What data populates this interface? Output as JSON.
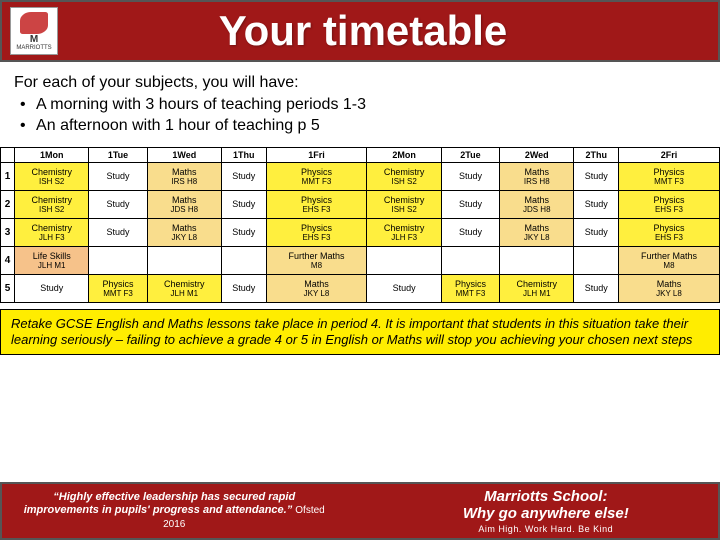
{
  "header": {
    "title": "Your timetable",
    "logo_letter": "M",
    "logo_name": "MARRIOTTS"
  },
  "intro": {
    "lead": "For each of your subjects, you will have:",
    "bullets": [
      "A morning with 3 hours of teaching periods 1-3",
      "An afternoon with 1 hour of teaching p 5"
    ]
  },
  "colors": {
    "chemistry": "#ffef3e",
    "maths": "#f9dd8d",
    "physics": "#ffef3e",
    "further": "#f9dd8d",
    "life": "#f6c28a",
    "study": "#ffffff"
  },
  "columns": [
    "",
    "1Mon",
    "1Tue",
    "1Wed",
    "1Thu",
    "1Fri",
    "2Mon",
    "2Tue",
    "2Wed",
    "2Thu",
    "2Fri"
  ],
  "rows": [
    {
      "n": "1",
      "c": [
        {
          "t": "Chemistry",
          "s": "ISH S2",
          "k": "chemistry"
        },
        {
          "t": "Study",
          "s": "",
          "k": "study"
        },
        {
          "t": "Maths",
          "s": "IRS H8",
          "k": "maths"
        },
        {
          "t": "Study",
          "s": "",
          "k": "study"
        },
        {
          "t": "Physics",
          "s": "MMT F3",
          "k": "physics"
        },
        {
          "t": "Chemistry",
          "s": "ISH S2",
          "k": "chemistry"
        },
        {
          "t": "Study",
          "s": "",
          "k": "study"
        },
        {
          "t": "Maths",
          "s": "IRS H8",
          "k": "maths"
        },
        {
          "t": "Study",
          "s": "",
          "k": "study"
        },
        {
          "t": "Physics",
          "s": "MMT F3",
          "k": "physics"
        }
      ]
    },
    {
      "n": "2",
      "c": [
        {
          "t": "Chemistry",
          "s": "ISH S2",
          "k": "chemistry"
        },
        {
          "t": "Study",
          "s": "",
          "k": "study"
        },
        {
          "t": "Maths",
          "s": "JDS H8",
          "k": "maths"
        },
        {
          "t": "Study",
          "s": "",
          "k": "study"
        },
        {
          "t": "Physics",
          "s": "EHS F3",
          "k": "physics"
        },
        {
          "t": "Chemistry",
          "s": "ISH S2",
          "k": "chemistry"
        },
        {
          "t": "Study",
          "s": "",
          "k": "study"
        },
        {
          "t": "Maths",
          "s": "JDS H8",
          "k": "maths"
        },
        {
          "t": "Study",
          "s": "",
          "k": "study"
        },
        {
          "t": "Physics",
          "s": "EHS F3",
          "k": "physics"
        }
      ]
    },
    {
      "n": "3",
      "c": [
        {
          "t": "Chemistry",
          "s": "JLH F3",
          "k": "chemistry"
        },
        {
          "t": "Study",
          "s": "",
          "k": "study"
        },
        {
          "t": "Maths",
          "s": "JKY L8",
          "k": "maths"
        },
        {
          "t": "Study",
          "s": "",
          "k": "study"
        },
        {
          "t": "Physics",
          "s": "EHS F3",
          "k": "physics"
        },
        {
          "t": "Chemistry",
          "s": "JLH F3",
          "k": "chemistry"
        },
        {
          "t": "Study",
          "s": "",
          "k": "study"
        },
        {
          "t": "Maths",
          "s": "JKY L8",
          "k": "maths"
        },
        {
          "t": "Study",
          "s": "",
          "k": "study"
        },
        {
          "t": "Physics",
          "s": "EHS F3",
          "k": "physics"
        }
      ]
    },
    {
      "n": "4",
      "c": [
        {
          "t": "Life Skills",
          "s": "JLH M1",
          "k": "life"
        },
        {
          "t": "",
          "s": "",
          "k": "study"
        },
        {
          "t": "",
          "s": "",
          "k": "study"
        },
        {
          "t": "",
          "s": "",
          "k": "study"
        },
        {
          "t": "Further Maths",
          "s": "M8",
          "k": "further"
        },
        {
          "t": "",
          "s": "",
          "k": "study"
        },
        {
          "t": "",
          "s": "",
          "k": "study"
        },
        {
          "t": "",
          "s": "",
          "k": "study"
        },
        {
          "t": "",
          "s": "",
          "k": "study"
        },
        {
          "t": "Further Maths",
          "s": "M8",
          "k": "further"
        }
      ]
    },
    {
      "n": "5",
      "c": [
        {
          "t": "Study",
          "s": "",
          "k": "study"
        },
        {
          "t": "Physics",
          "s": "MMT F3",
          "k": "physics"
        },
        {
          "t": "Chemistry",
          "s": "JLH M1",
          "k": "chemistry"
        },
        {
          "t": "Study",
          "s": "",
          "k": "study"
        },
        {
          "t": "Maths",
          "s": "JKY L8",
          "k": "maths"
        },
        {
          "t": "Study",
          "s": "",
          "k": "study"
        },
        {
          "t": "Physics",
          "s": "MMT F3",
          "k": "physics"
        },
        {
          "t": "Chemistry",
          "s": "JLH M1",
          "k": "chemistry"
        },
        {
          "t": "Study",
          "s": "",
          "k": "study"
        },
        {
          "t": "Maths",
          "s": "JKY L8",
          "k": "maths"
        }
      ]
    }
  ],
  "notice": "Retake GCSE English and Maths lessons take place in period 4. It is important that students in this situation take their learning seriously – failing to achieve a grade 4 or 5 in English or Maths will stop you achieving your chosen next steps",
  "footer": {
    "quote": "“Highly effective leadership has secured rapid improvements in pupils' progress and attendance.”",
    "attribution": "Ofsted 2016",
    "school": "Marriotts School:",
    "tag": "Why go anywhere else!",
    "motto": "Aim High. Work Hard. Be Kind"
  }
}
